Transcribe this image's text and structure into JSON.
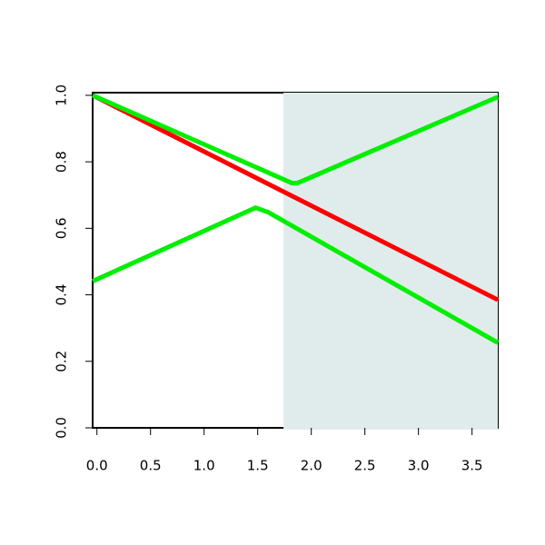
{
  "chart_data": {
    "type": "line",
    "xlim": [
      -0.04,
      3.74
    ],
    "ylim": [
      0,
      1.008
    ],
    "xticks": [
      {
        "value": 0,
        "label": "0.0"
      },
      0.5,
      {
        "value": 1,
        "label": "1.0"
      },
      1.5,
      {
        "value": 2,
        "label": "2.0"
      },
      2.5,
      {
        "value": 3,
        "label": "3.0"
      },
      3.5
    ],
    "yticks": [
      {
        "value": 0,
        "label": "0.0"
      },
      0.2,
      0.4,
      0.6,
      0.8,
      {
        "value": 1,
        "label": "1.0"
      }
    ],
    "shaded_region": {
      "from": 1.74,
      "to": 3.74,
      "color": "#e0eceb"
    },
    "series": [
      {
        "color": "#ff0000",
        "x": [
          -0.04,
          3.74
        ],
        "values": [
          1.0,
          0.385
        ]
      },
      {
        "color": "#00ee00",
        "x": [
          -0.04,
          1.82,
          1.87,
          3.74
        ],
        "values": [
          1.0,
          0.736,
          0.736,
          0.995
        ]
      },
      {
        "color": "#00ee00",
        "x": [
          -0.04,
          1.48,
          1.6,
          3.74
        ],
        "values": [
          0.441,
          0.662,
          0.648,
          0.256
        ]
      }
    ]
  }
}
